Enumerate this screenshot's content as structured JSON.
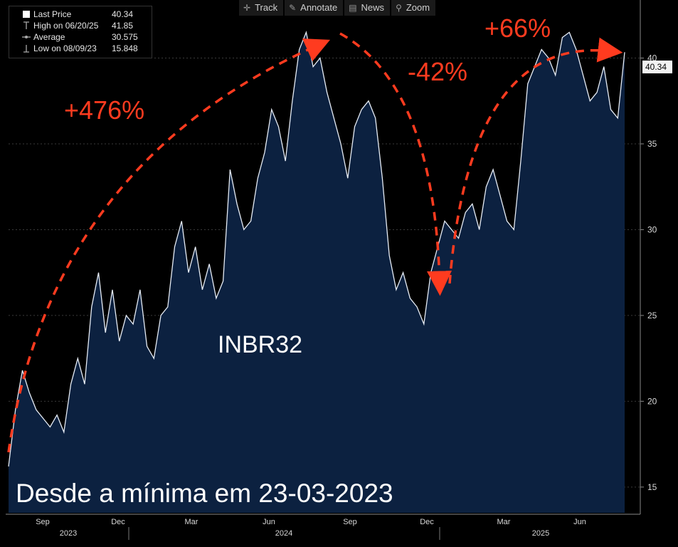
{
  "legend": {
    "items": [
      {
        "label": "Last Price",
        "value": "40.34"
      },
      {
        "label": "High on 06/20/25",
        "value": "41.85"
      },
      {
        "label": "Average",
        "value": "30.575"
      },
      {
        "label": "Low on 08/09/23",
        "value": "15.848"
      }
    ]
  },
  "toolbar": {
    "items": [
      {
        "label": "Track",
        "icon": "crosshair-icon"
      },
      {
        "label": "Annotate",
        "icon": "pencil-icon"
      },
      {
        "label": "News",
        "icon": "news-icon"
      },
      {
        "label": "Zoom",
        "icon": "magnifier-icon"
      }
    ]
  },
  "annotations": {
    "gain1": "+476%",
    "drop": "-42%",
    "gain2": "+66%",
    "ticker": "INBR32",
    "caption": "Desde a mínima em 23-03-2023"
  },
  "colors": {
    "area_fill": "#0c2140",
    "line": "#e6ecf5",
    "arrow": "#ff3b1f",
    "grid": "#3a3a3a"
  },
  "chart_data": {
    "type": "area",
    "y_ticks": [
      15,
      20,
      25,
      30,
      35,
      40
    ],
    "ylim": [
      13.5,
      43.3
    ],
    "x_ticks": [
      "Sep",
      "Dec",
      "Mar",
      "Jun",
      "Sep",
      "Dec",
      "Mar",
      "Jun"
    ],
    "years": [
      "2023",
      "2024",
      "2025"
    ],
    "last_price_label": "40.34",
    "series": [
      {
        "values": [
          16.2,
          19.5,
          21.8,
          20.5,
          19.5,
          19.0,
          18.5,
          19.2,
          18.2,
          21.0,
          22.5,
          21.0,
          25.5,
          27.5,
          24.0,
          26.5,
          23.5,
          25.0,
          24.5,
          26.5,
          23.2,
          22.5,
          25.0,
          25.5,
          29.0,
          30.5,
          27.5,
          29.0,
          26.5,
          28.0,
          26.0,
          27.0,
          33.5,
          31.5,
          30.0,
          30.5,
          33.0,
          34.5,
          37.0,
          36.0,
          34.0,
          37.5,
          40.5,
          41.5,
          39.5,
          40.0,
          38.0,
          36.5,
          35.0,
          33.0,
          36.0,
          37.0,
          37.5,
          36.5,
          33.0,
          28.5,
          26.5,
          27.5,
          26.0,
          25.5,
          24.5,
          27.5,
          29.0,
          30.5,
          30.0,
          29.5,
          31.0,
          31.5,
          30.0,
          32.5,
          33.5,
          32.0,
          30.5,
          30.0,
          34.0,
          38.5,
          39.5,
          40.5,
          40.0,
          39.0,
          41.2,
          41.5,
          40.5,
          39.0,
          37.5,
          38.0,
          39.5,
          37.0,
          36.5,
          40.34
        ]
      }
    ]
  }
}
